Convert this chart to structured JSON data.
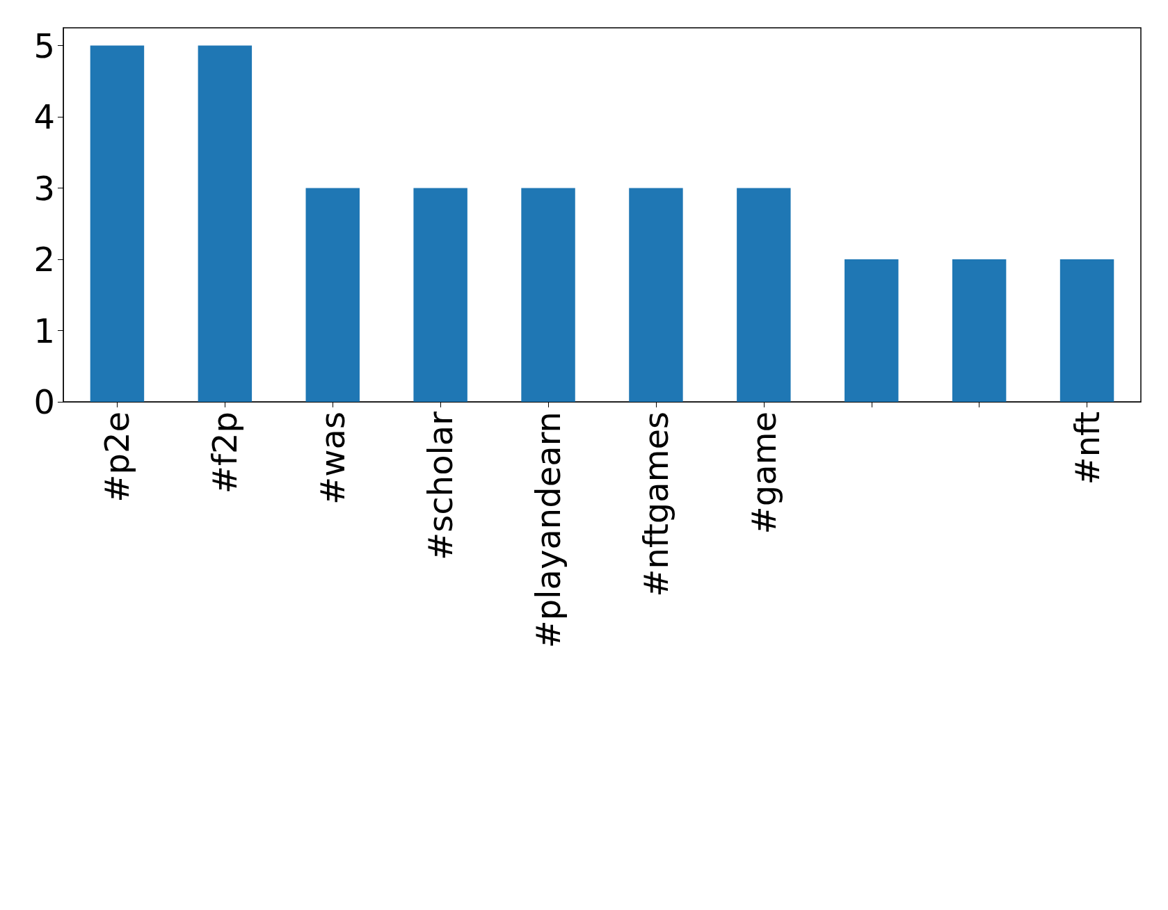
{
  "chart_data": {
    "type": "bar",
    "categories": [
      "#p2e",
      "#f2p",
      "#was",
      "#scholar",
      "#playandearn",
      "#nftgames",
      "#game",
      null,
      null,
      "#nft"
    ],
    "values": [
      5,
      5,
      3,
      3,
      3,
      3,
      3,
      2,
      2,
      2
    ],
    "color": "#1f77b4",
    "ylim": [
      0,
      5.25
    ],
    "yticks": [
      0,
      1,
      2,
      3,
      4,
      5
    ],
    "grid": false
  }
}
